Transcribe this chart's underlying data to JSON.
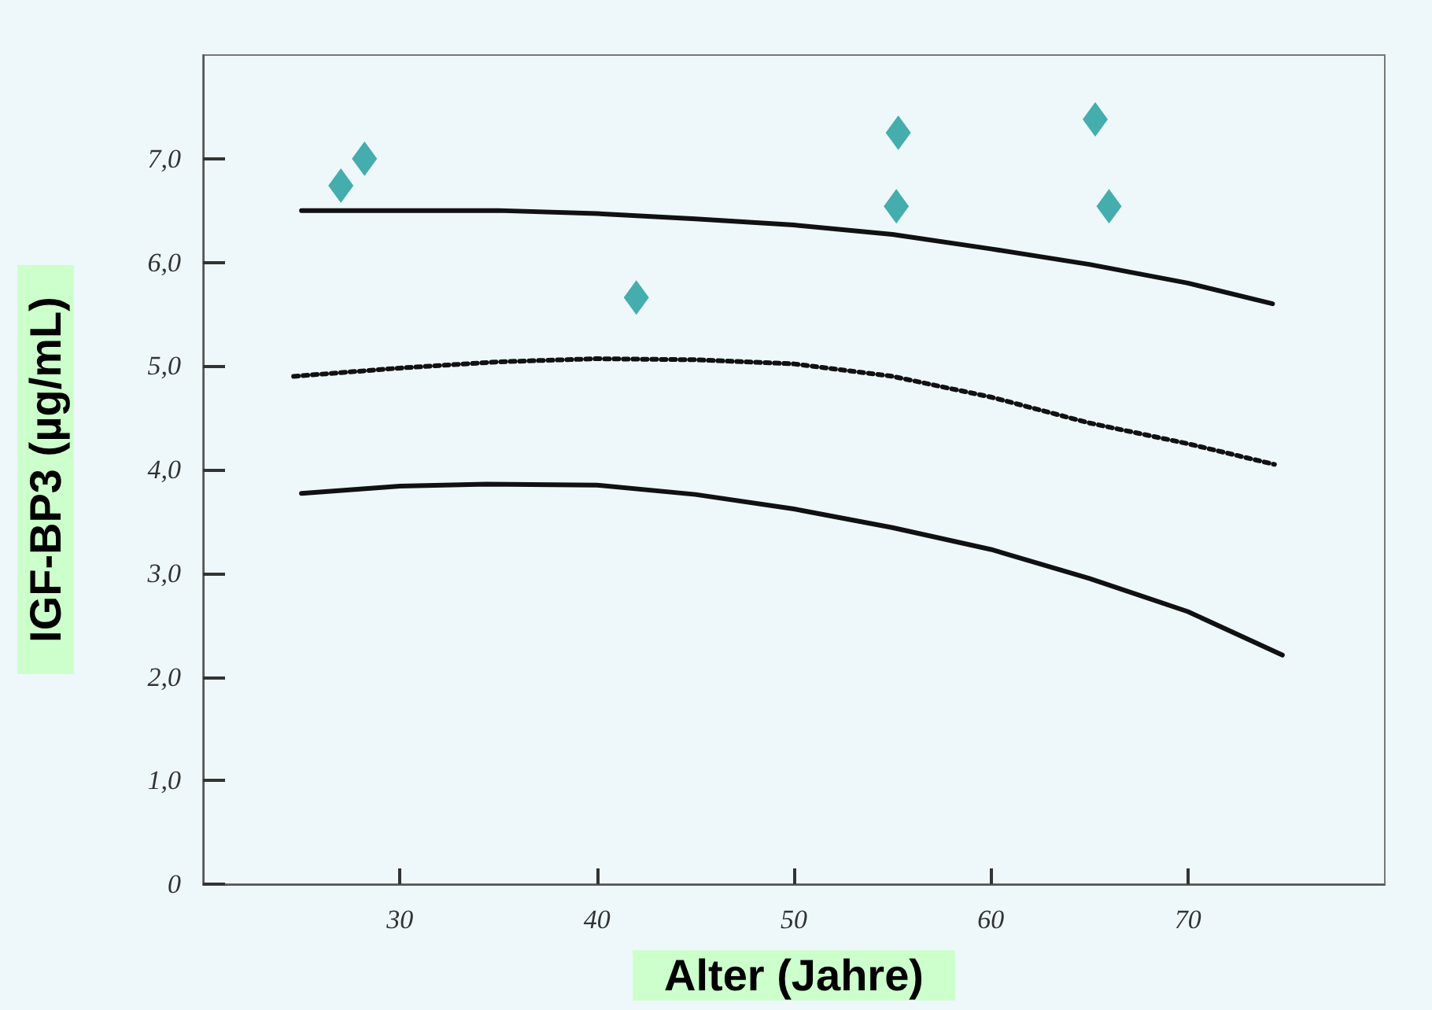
{
  "chart_data": {
    "type": "line",
    "xlabel": "Alter (Jahre)",
    "ylabel": "IGF-BP3 (µg/mL)",
    "xlim": [
      20,
      80
    ],
    "xticks": [
      30,
      40,
      50,
      60,
      70
    ],
    "ylim": [
      0,
      8
    ],
    "yticks": [
      {
        "value": 0,
        "label": "0"
      },
      {
        "value": 1,
        "label": "1,0"
      },
      {
        "value": 2,
        "label": "2,0"
      },
      {
        "value": 3,
        "label": "3,0"
      },
      {
        "value": 4,
        "label": "4,0"
      },
      {
        "value": 5,
        "label": "5,0"
      },
      {
        "value": 6,
        "label": "6,0"
      },
      {
        "value": 7,
        "label": "7,0"
      }
    ],
    "grid": false,
    "series": [
      {
        "color": "#111111",
        "line_style": "solid",
        "marker": "none",
        "x": [
          25,
          30,
          35,
          40,
          45,
          50,
          55,
          60,
          65,
          70,
          74.3
        ],
        "values": [
          6.5,
          6.5,
          6.5,
          6.47,
          6.42,
          6.36,
          6.27,
          6.13,
          5.98,
          5.8,
          5.6
        ]
      },
      {
        "color": "#111111",
        "line_style": "dotted",
        "marker": "none",
        "x": [
          24.6,
          30,
          35,
          40,
          45,
          50,
          55,
          60,
          65,
          70,
          74.4
        ],
        "values": [
          4.9,
          4.98,
          5.04,
          5.07,
          5.06,
          5.02,
          4.9,
          4.7,
          4.45,
          4.25,
          4.05
        ]
      },
      {
        "color": "#111111",
        "line_style": "solid",
        "marker": "none",
        "x": [
          25,
          30,
          34.4,
          40,
          45,
          50,
          55,
          60,
          65,
          70,
          74.8
        ],
        "values": [
          3.77,
          3.84,
          3.86,
          3.85,
          3.76,
          3.62,
          3.44,
          3.23,
          2.95,
          2.63,
          2.21
        ]
      },
      {
        "type": "scatter",
        "color": "#1a9a9a",
        "marker": "diamond",
        "x": [
          27.0,
          28.2,
          42.0,
          55.3,
          55.2,
          65.3,
          66.0
        ],
        "values": [
          6.74,
          7.0,
          5.66,
          7.25,
          6.54,
          7.38,
          6.54
        ]
      }
    ]
  }
}
